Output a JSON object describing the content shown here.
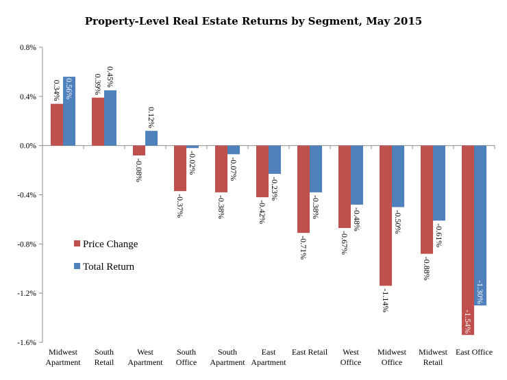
{
  "chart_data": {
    "type": "bar",
    "title": "Property-Level Real Estate Returns by Segment, May 2015",
    "xlabel": "",
    "ylabel": "",
    "categories": [
      [
        "Midwest",
        "Apartment"
      ],
      [
        "South",
        "Retail"
      ],
      [
        "West",
        "Apartment"
      ],
      [
        "South",
        "Office"
      ],
      [
        "South",
        "Apartment"
      ],
      [
        "East",
        "Apartment"
      ],
      [
        "East Retail"
      ],
      [
        "West",
        "Office"
      ],
      [
        "Midwest",
        "Office"
      ],
      [
        "Midwest",
        "Retail"
      ],
      [
        "East Office"
      ]
    ],
    "series": [
      {
        "name": "Price Change",
        "color": "#C0504D",
        "values": [
          0.34,
          0.39,
          -0.08,
          -0.37,
          -0.38,
          -0.42,
          -0.71,
          -0.67,
          -1.14,
          -0.88,
          -1.54
        ],
        "labels": [
          "0.34%",
          "0.39%",
          "-0.08%",
          "-0.37%",
          "-0.38%",
          "-0.42%",
          "-0.71%",
          "-0.67%",
          "-1.14%",
          "-0.88%",
          "-1.54%"
        ]
      },
      {
        "name": "Total Return",
        "color": "#4F81BD",
        "values": [
          0.56,
          0.45,
          0.12,
          -0.02,
          -0.07,
          -0.23,
          -0.38,
          -0.48,
          -0.5,
          -0.61,
          -1.3
        ],
        "labels": [
          "0.56%",
          "0.45%",
          "0.12%",
          "-0.02%",
          "-0.07%",
          "-0.23%",
          "-0.38%",
          "-0.48%",
          "-0.50%",
          "-0.61%",
          "-1.30%"
        ]
      }
    ],
    "ylim": [
      -1.6,
      0.8
    ],
    "yticks": [
      0.8,
      0.4,
      0.0,
      -0.4,
      -0.8,
      -1.2,
      -1.6
    ],
    "ytick_labels": [
      "0.8%",
      "0.4%",
      "0.0%",
      "-0.4%",
      "-0.8%",
      "-1.2%",
      "-1.6%"
    ],
    "grid": false,
    "legend_position": "left-middle"
  }
}
